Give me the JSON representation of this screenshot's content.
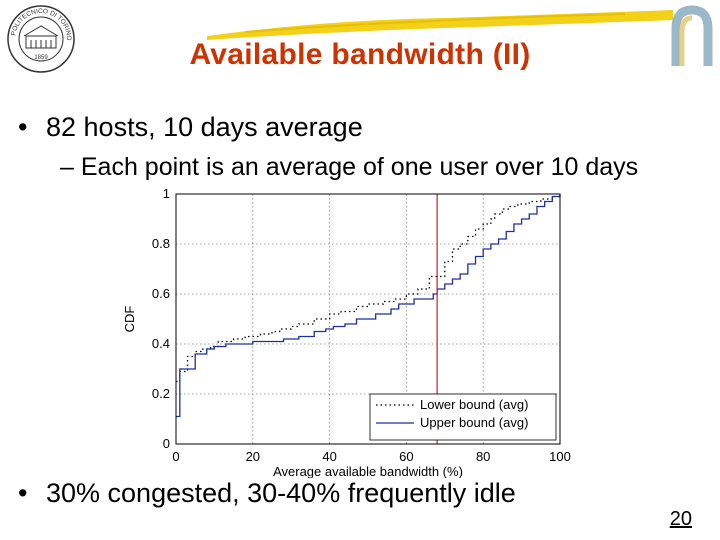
{
  "slide": {
    "title": "Available bandwidth (II)",
    "bullets": [
      "82 hosts, 10 days average",
      "30% congested, 30-40% frequently idle"
    ],
    "sub_bullet": "Each point is an average of one user over 10 days",
    "bullet_glyph": "•",
    "dash_glyph": "–",
    "page_number": "20",
    "logo": "university-seal",
    "logo_text": "POLITECNICO DI TORINO",
    "logo_year": "1859",
    "accent_color": "#cc3300",
    "brush_color": "#f2cc00"
  },
  "chart_data": {
    "type": "line",
    "xlabel": "Average available bandwidth (%)",
    "ylabel": "CDF",
    "xlim": [
      0,
      100
    ],
    "ylim": [
      0,
      1
    ],
    "xticks": [
      "0",
      "20",
      "40",
      "60",
      "80",
      "100"
    ],
    "yticks": [
      "0",
      "0.2",
      "0.4",
      "0.6",
      "0.8",
      "1"
    ],
    "grid": true,
    "grid_style": "dotted",
    "legend_position": "bottom-right",
    "vertical_line": {
      "x": 68,
      "color": "#cc2222"
    },
    "series": [
      {
        "name": "Lower bound (avg)",
        "style": "dotted",
        "color": "#000000",
        "x": [
          0,
          1,
          3,
          5,
          7,
          9,
          11,
          15,
          18,
          22,
          25,
          27,
          30,
          32,
          36,
          40,
          43,
          47,
          50,
          54,
          57,
          60,
          63,
          66,
          70,
          72,
          74,
          76,
          78,
          80,
          82,
          83,
          85,
          87,
          89,
          92,
          95,
          98,
          100
        ],
        "y": [
          0.25,
          0.29,
          0.35,
          0.37,
          0.38,
          0.39,
          0.41,
          0.42,
          0.43,
          0.44,
          0.45,
          0.46,
          0.47,
          0.48,
          0.5,
          0.52,
          0.53,
          0.55,
          0.56,
          0.57,
          0.58,
          0.6,
          0.62,
          0.67,
          0.73,
          0.78,
          0.8,
          0.83,
          0.86,
          0.88,
          0.9,
          0.92,
          0.94,
          0.95,
          0.96,
          0.97,
          0.98,
          0.99,
          1.0
        ]
      },
      {
        "name": "Upper bound (avg)",
        "style": "solid",
        "color": "#1f2f9c",
        "x": [
          0,
          1,
          5,
          8,
          10,
          13,
          17,
          20,
          24,
          28,
          32,
          36,
          39,
          41,
          44,
          47,
          52,
          56,
          58,
          62,
          67,
          68,
          70,
          72,
          74,
          76,
          78,
          80,
          82,
          84,
          86,
          88,
          90,
          92,
          94,
          96,
          98,
          100
        ],
        "y": [
          0.11,
          0.3,
          0.36,
          0.38,
          0.39,
          0.4,
          0.4,
          0.41,
          0.41,
          0.42,
          0.43,
          0.45,
          0.46,
          0.47,
          0.48,
          0.5,
          0.52,
          0.54,
          0.56,
          0.58,
          0.6,
          0.62,
          0.64,
          0.66,
          0.68,
          0.72,
          0.75,
          0.78,
          0.8,
          0.82,
          0.85,
          0.88,
          0.9,
          0.92,
          0.95,
          0.97,
          0.99,
          1.0
        ]
      }
    ]
  }
}
